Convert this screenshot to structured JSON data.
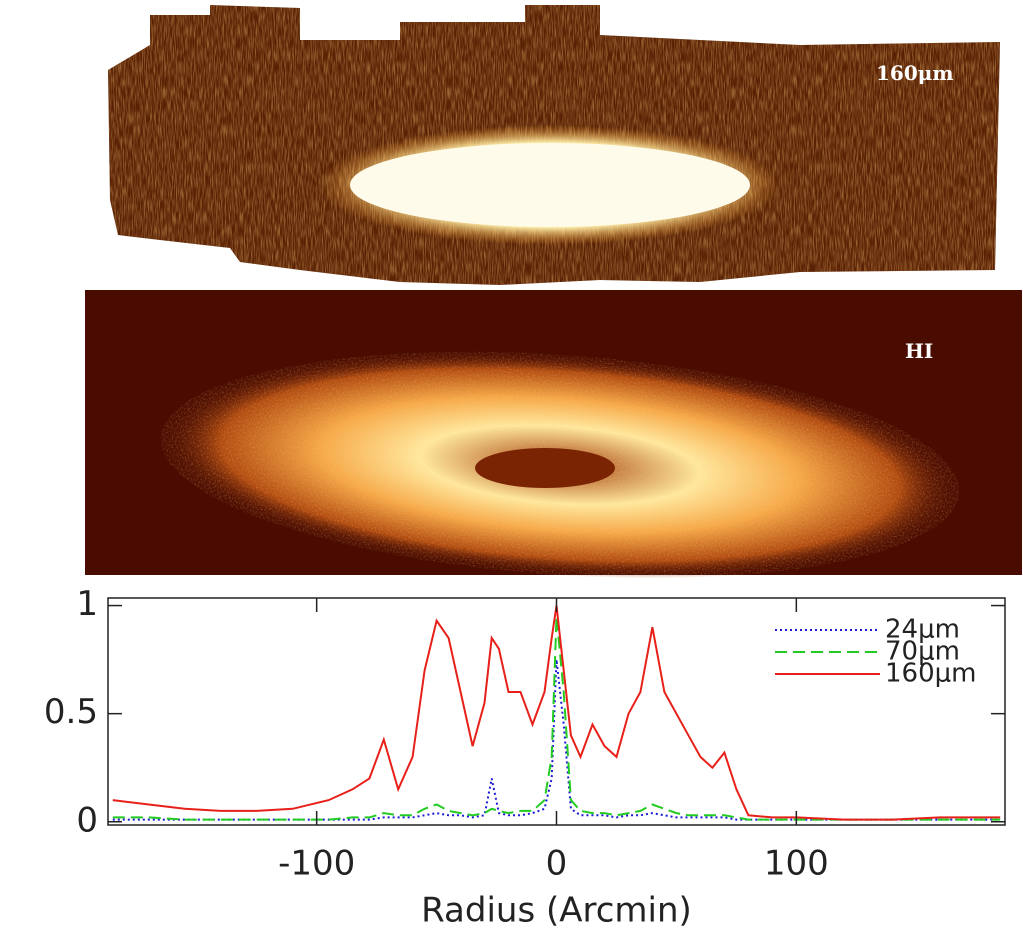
{
  "images": {
    "top_label": "160μm",
    "middle_label": "HI"
  },
  "chart_data": {
    "type": "line",
    "xlabel": "Radius (Arcmin)",
    "xlim": [
      -187,
      187
    ],
    "ylim": [
      -0.015,
      1.035
    ],
    "xticks": [
      -100,
      0,
      100
    ],
    "yticks": [
      0,
      0.5,
      1
    ],
    "x": [
      -185,
      -170,
      -155,
      -140,
      -125,
      -110,
      -95,
      -85,
      -78,
      -72,
      -66,
      -60,
      -55,
      -50,
      -45,
      -40,
      -35,
      -30,
      -27,
      -24,
      -20,
      -15,
      -10,
      -5,
      -2,
      0,
      3,
      6,
      10,
      15,
      20,
      25,
      30,
      35,
      40,
      45,
      50,
      55,
      60,
      65,
      70,
      75,
      80,
      90,
      100,
      120,
      140,
      160,
      185
    ],
    "series": [
      {
        "name": "24μm",
        "color": "#1a1ad6",
        "dash": "dotted",
        "values": [
          0.01,
          0.01,
          0.01,
          0.01,
          0.01,
          0.01,
          0.01,
          0.01,
          0.01,
          0.02,
          0.02,
          0.02,
          0.03,
          0.04,
          0.03,
          0.03,
          0.02,
          0.03,
          0.2,
          0.04,
          0.03,
          0.03,
          0.04,
          0.06,
          0.2,
          0.75,
          0.45,
          0.06,
          0.03,
          0.03,
          0.03,
          0.02,
          0.03,
          0.03,
          0.04,
          0.03,
          0.02,
          0.02,
          0.02,
          0.02,
          0.02,
          0.01,
          0.01,
          0.01,
          0.01,
          0.01,
          0.01,
          0.01,
          0.01
        ]
      },
      {
        "name": "70μm",
        "color": "#22cc22",
        "dash": "dashed",
        "values": [
          0.02,
          0.02,
          0.01,
          0.01,
          0.01,
          0.01,
          0.01,
          0.02,
          0.02,
          0.04,
          0.03,
          0.03,
          0.06,
          0.08,
          0.05,
          0.04,
          0.03,
          0.04,
          0.06,
          0.05,
          0.04,
          0.05,
          0.05,
          0.1,
          0.3,
          0.95,
          0.6,
          0.1,
          0.05,
          0.04,
          0.04,
          0.03,
          0.04,
          0.05,
          0.08,
          0.06,
          0.04,
          0.03,
          0.03,
          0.03,
          0.03,
          0.02,
          0.01,
          0.01,
          0.01,
          0.01,
          0.01,
          0.01,
          0.01
        ]
      },
      {
        "name": "160μm",
        "color": "#e8201a",
        "dash": "solid",
        "values": [
          0.1,
          0.08,
          0.06,
          0.05,
          0.05,
          0.06,
          0.1,
          0.15,
          0.2,
          0.38,
          0.15,
          0.3,
          0.7,
          0.93,
          0.85,
          0.6,
          0.35,
          0.55,
          0.85,
          0.8,
          0.6,
          0.6,
          0.45,
          0.6,
          0.85,
          1.0,
          0.7,
          0.4,
          0.3,
          0.45,
          0.35,
          0.3,
          0.5,
          0.6,
          0.9,
          0.6,
          0.5,
          0.4,
          0.3,
          0.25,
          0.32,
          0.15,
          0.03,
          0.02,
          0.02,
          0.01,
          0.01,
          0.02,
          0.02
        ]
      }
    ]
  }
}
